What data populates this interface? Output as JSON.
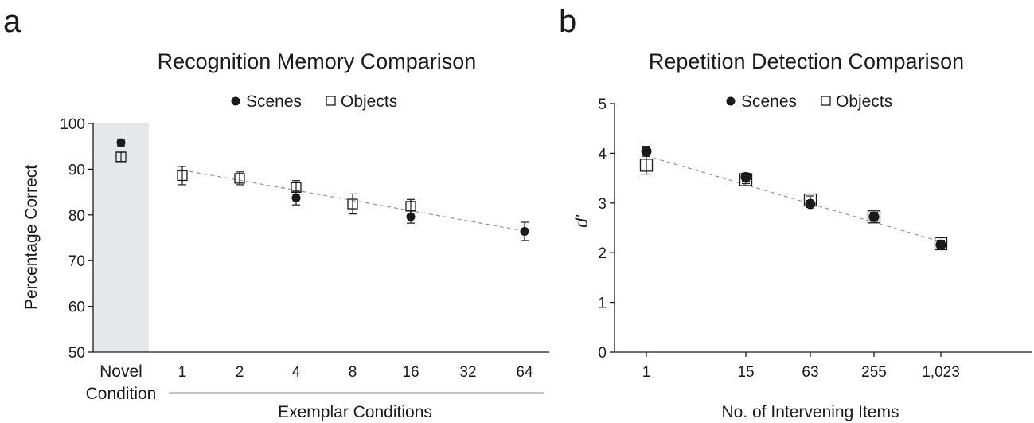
{
  "chart_data": [
    {
      "type": "scatter",
      "panel_label": "a",
      "title": "Recognition Memory Comparison",
      "ylabel": "Percentage Correct",
      "xlabel": "Exemplar Conditions",
      "ylim": [
        50,
        100
      ],
      "yticks": [
        50,
        60,
        70,
        80,
        90,
        100
      ],
      "categories": [
        "Novel\nCondition",
        "1",
        "2",
        "4",
        "8",
        "16",
        "32",
        "64"
      ],
      "shaded_region": "Novel",
      "legend": {
        "position": "top-center",
        "entries": [
          "Scenes",
          "Objects"
        ]
      },
      "trend_line": {
        "style": "dashed",
        "from": [
          1,
          89.8
        ],
        "to": [
          64,
          76.5
        ]
      },
      "series": [
        {
          "name": "Scenes",
          "marker": "filled-circle",
          "points": [
            {
              "x": "Novel",
              "y": 95.8,
              "err": 0.7
            },
            {
              "x": "4",
              "y": 83.7,
              "err": 1.5
            },
            {
              "x": "16",
              "y": 79.6,
              "err": 1.4
            },
            {
              "x": "64",
              "y": 76.4,
              "err": 2.0
            }
          ]
        },
        {
          "name": "Objects",
          "marker": "open-square",
          "points": [
            {
              "x": "Novel",
              "y": 92.7,
              "err": 1.0
            },
            {
              "x": "1",
              "y": 88.6,
              "err": 2.0
            },
            {
              "x": "2",
              "y": 88.0,
              "err": 1.4
            },
            {
              "x": "4",
              "y": 86.0,
              "err": 1.5
            },
            {
              "x": "8",
              "y": 82.4,
              "err": 2.2
            },
            {
              "x": "16",
              "y": 81.9,
              "err": 1.5
            }
          ]
        }
      ]
    },
    {
      "type": "scatter",
      "panel_label": "b",
      "title": "Repetition Detection Comparison",
      "ylabel": "d'",
      "xlabel": "No. of Intervening Items",
      "ylim": [
        0,
        5
      ],
      "yticks": [
        0,
        1,
        2,
        3,
        4,
        5
      ],
      "xscale": "log",
      "categories": [
        "1",
        "15",
        "63",
        "255",
        "1,023"
      ],
      "legend": {
        "position": "top-center",
        "entries": [
          "Scenes",
          "Objects"
        ]
      },
      "trend_line": {
        "style": "dashed",
        "from": [
          1,
          3.95
        ],
        "to": [
          1023,
          2.22
        ]
      },
      "series": [
        {
          "name": "Scenes",
          "marker": "filled-circle",
          "points": [
            {
              "x": "1",
              "y": 4.04,
              "err": 0.1
            },
            {
              "x": "15",
              "y": 3.52,
              "err": 0.08
            },
            {
              "x": "63",
              "y": 2.98,
              "err": 0.07
            },
            {
              "x": "255",
              "y": 2.72,
              "err": 0.09
            },
            {
              "x": "1,023",
              "y": 2.16,
              "err": 0.07
            }
          ]
        },
        {
          "name": "Objects",
          "marker": "open-square",
          "points": [
            {
              "x": "1",
              "y": 3.76,
              "err": 0.18
            },
            {
              "x": "15",
              "y": 3.47,
              "err": 0.08
            },
            {
              "x": "63",
              "y": 3.06,
              "err": 0.08
            },
            {
              "x": "255",
              "y": 2.72,
              "err": 0.08
            },
            {
              "x": "1,023",
              "y": 2.18,
              "err": 0.07
            }
          ]
        }
      ]
    }
  ]
}
